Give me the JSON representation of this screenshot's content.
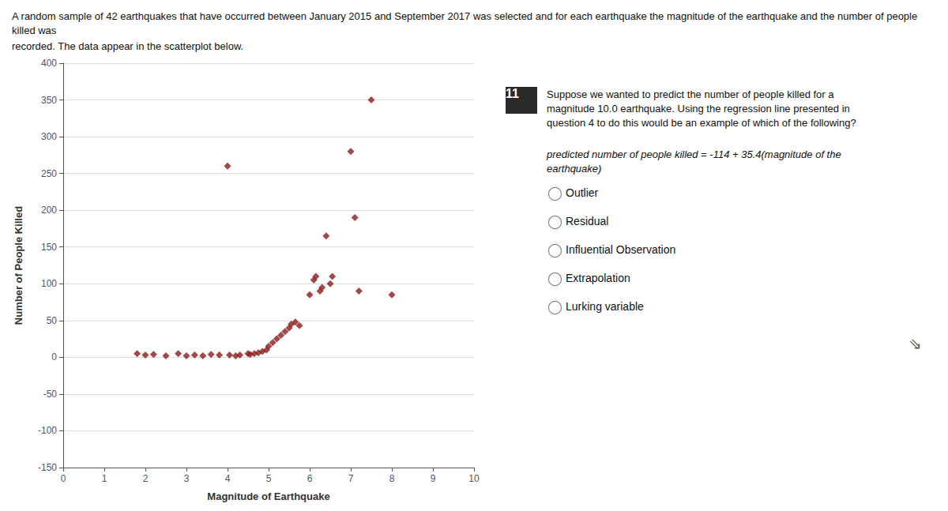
{
  "chart_data": {
    "type": "scatter",
    "title": "A random sample of 42 earthquakes that have occurred between January 2015 and September 2017 was selected and for each earthquake the magnitude of the earthquake and the number of people killed was",
    "subtitle": "recorded. The data appear in the scatterplot below.",
    "x_label": "Magnitude of Earthquake",
    "y_label": "Number of People Killed",
    "x": [
      1.8,
      2.0,
      2.2,
      2.5,
      2.8,
      3.0,
      3.2,
      3.4,
      3.6,
      3.8,
      4.0,
      4.05,
      4.2,
      4.3,
      4.5,
      4.55,
      4.65,
      4.75,
      4.85,
      4.95,
      5.0,
      5.1,
      5.2,
      5.3,
      5.4,
      5.5,
      5.55,
      5.65,
      5.75,
      6.0,
      6.1,
      6.15,
      6.25,
      6.3,
      6.4,
      6.5,
      6.55,
      7.0,
      7.1,
      7.2,
      7.5,
      8.0
    ],
    "values": [
      5,
      3,
      4,
      2,
      5,
      2,
      3,
      2,
      4,
      3,
      260,
      3,
      2,
      3,
      5,
      4,
      5,
      6,
      8,
      10,
      15,
      20,
      25,
      30,
      35,
      40,
      45,
      48,
      43,
      85,
      105,
      110,
      90,
      95,
      165,
      100,
      110,
      280,
      190,
      90,
      350,
      85
    ],
    "color": "#8B1A1A",
    "marker": "diamond",
    "xlim": [
      0,
      10
    ],
    "xticks": [
      0,
      1,
      2,
      3,
      4,
      5,
      6,
      7,
      8,
      9,
      10
    ],
    "ylim": [
      -150,
      400
    ],
    "yticks": [
      -150,
      -100,
      -50,
      0,
      50,
      100,
      150,
      200,
      250,
      300,
      350,
      400
    ],
    "grid": "y",
    "annotations": {
      "question_number": "11",
      "question": "Suppose we wanted to predict the number of people killed for a magnitude 10.0 earthquake. Using the regression line presented in question 4 to do this would be an example of which of the following?",
      "equation": "predicted number of people killed = -114 + 35.4(magnitude of the earthquake)",
      "options": [
        "Outlier",
        "Residual",
        "Influential Observation",
        "Extrapolation",
        "Lurking variable"
      ],
      "navigation": "⇘"
    }
  }
}
